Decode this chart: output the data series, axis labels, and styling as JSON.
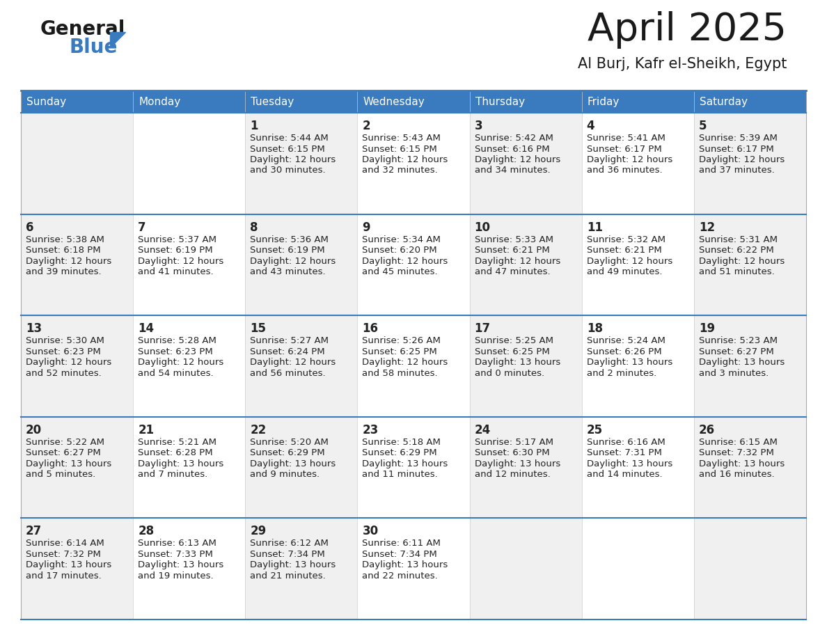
{
  "title": "April 2025",
  "subtitle": "Al Burj, Kafr el-Sheikh, Egypt",
  "header_color": "#3a7abf",
  "header_text_color": "#ffffff",
  "days_of_week": [
    "Sunday",
    "Monday",
    "Tuesday",
    "Wednesday",
    "Thursday",
    "Friday",
    "Saturday"
  ],
  "cell_bg_even": "#f0f0f0",
  "cell_bg_odd": "#ffffff",
  "divider_color": "#3a7abf",
  "text_color": "#222222",
  "title_color": "#1a1a1a",
  "logo_general_color": "#1a1a1a",
  "logo_blue_color": "#3a7abf",
  "logo_triangle_color": "#3a7abf",
  "calendar_data": [
    [
      {
        "day": null,
        "sunrise": null,
        "sunset": null,
        "daylight_line1": null,
        "daylight_line2": null
      },
      {
        "day": null,
        "sunrise": null,
        "sunset": null,
        "daylight_line1": null,
        "daylight_line2": null
      },
      {
        "day": "1",
        "sunrise": "Sunrise: 5:44 AM",
        "sunset": "Sunset: 6:15 PM",
        "daylight_line1": "Daylight: 12 hours",
        "daylight_line2": "and 30 minutes."
      },
      {
        "day": "2",
        "sunrise": "Sunrise: 5:43 AM",
        "sunset": "Sunset: 6:15 PM",
        "daylight_line1": "Daylight: 12 hours",
        "daylight_line2": "and 32 minutes."
      },
      {
        "day": "3",
        "sunrise": "Sunrise: 5:42 AM",
        "sunset": "Sunset: 6:16 PM",
        "daylight_line1": "Daylight: 12 hours",
        "daylight_line2": "and 34 minutes."
      },
      {
        "day": "4",
        "sunrise": "Sunrise: 5:41 AM",
        "sunset": "Sunset: 6:17 PM",
        "daylight_line1": "Daylight: 12 hours",
        "daylight_line2": "and 36 minutes."
      },
      {
        "day": "5",
        "sunrise": "Sunrise: 5:39 AM",
        "sunset": "Sunset: 6:17 PM",
        "daylight_line1": "Daylight: 12 hours",
        "daylight_line2": "and 37 minutes."
      }
    ],
    [
      {
        "day": "6",
        "sunrise": "Sunrise: 5:38 AM",
        "sunset": "Sunset: 6:18 PM",
        "daylight_line1": "Daylight: 12 hours",
        "daylight_line2": "and 39 minutes."
      },
      {
        "day": "7",
        "sunrise": "Sunrise: 5:37 AM",
        "sunset": "Sunset: 6:19 PM",
        "daylight_line1": "Daylight: 12 hours",
        "daylight_line2": "and 41 minutes."
      },
      {
        "day": "8",
        "sunrise": "Sunrise: 5:36 AM",
        "sunset": "Sunset: 6:19 PM",
        "daylight_line1": "Daylight: 12 hours",
        "daylight_line2": "and 43 minutes."
      },
      {
        "day": "9",
        "sunrise": "Sunrise: 5:34 AM",
        "sunset": "Sunset: 6:20 PM",
        "daylight_line1": "Daylight: 12 hours",
        "daylight_line2": "and 45 minutes."
      },
      {
        "day": "10",
        "sunrise": "Sunrise: 5:33 AM",
        "sunset": "Sunset: 6:21 PM",
        "daylight_line1": "Daylight: 12 hours",
        "daylight_line2": "and 47 minutes."
      },
      {
        "day": "11",
        "sunrise": "Sunrise: 5:32 AM",
        "sunset": "Sunset: 6:21 PM",
        "daylight_line1": "Daylight: 12 hours",
        "daylight_line2": "and 49 minutes."
      },
      {
        "day": "12",
        "sunrise": "Sunrise: 5:31 AM",
        "sunset": "Sunset: 6:22 PM",
        "daylight_line1": "Daylight: 12 hours",
        "daylight_line2": "and 51 minutes."
      }
    ],
    [
      {
        "day": "13",
        "sunrise": "Sunrise: 5:30 AM",
        "sunset": "Sunset: 6:23 PM",
        "daylight_line1": "Daylight: 12 hours",
        "daylight_line2": "and 52 minutes."
      },
      {
        "day": "14",
        "sunrise": "Sunrise: 5:28 AM",
        "sunset": "Sunset: 6:23 PM",
        "daylight_line1": "Daylight: 12 hours",
        "daylight_line2": "and 54 minutes."
      },
      {
        "day": "15",
        "sunrise": "Sunrise: 5:27 AM",
        "sunset": "Sunset: 6:24 PM",
        "daylight_line1": "Daylight: 12 hours",
        "daylight_line2": "and 56 minutes."
      },
      {
        "day": "16",
        "sunrise": "Sunrise: 5:26 AM",
        "sunset": "Sunset: 6:25 PM",
        "daylight_line1": "Daylight: 12 hours",
        "daylight_line2": "and 58 minutes."
      },
      {
        "day": "17",
        "sunrise": "Sunrise: 5:25 AM",
        "sunset": "Sunset: 6:25 PM",
        "daylight_line1": "Daylight: 13 hours",
        "daylight_line2": "and 0 minutes."
      },
      {
        "day": "18",
        "sunrise": "Sunrise: 5:24 AM",
        "sunset": "Sunset: 6:26 PM",
        "daylight_line1": "Daylight: 13 hours",
        "daylight_line2": "and 2 minutes."
      },
      {
        "day": "19",
        "sunrise": "Sunrise: 5:23 AM",
        "sunset": "Sunset: 6:27 PM",
        "daylight_line1": "Daylight: 13 hours",
        "daylight_line2": "and 3 minutes."
      }
    ],
    [
      {
        "day": "20",
        "sunrise": "Sunrise: 5:22 AM",
        "sunset": "Sunset: 6:27 PM",
        "daylight_line1": "Daylight: 13 hours",
        "daylight_line2": "and 5 minutes."
      },
      {
        "day": "21",
        "sunrise": "Sunrise: 5:21 AM",
        "sunset": "Sunset: 6:28 PM",
        "daylight_line1": "Daylight: 13 hours",
        "daylight_line2": "and 7 minutes."
      },
      {
        "day": "22",
        "sunrise": "Sunrise: 5:20 AM",
        "sunset": "Sunset: 6:29 PM",
        "daylight_line1": "Daylight: 13 hours",
        "daylight_line2": "and 9 minutes."
      },
      {
        "day": "23",
        "sunrise": "Sunrise: 5:18 AM",
        "sunset": "Sunset: 6:29 PM",
        "daylight_line1": "Daylight: 13 hours",
        "daylight_line2": "and 11 minutes."
      },
      {
        "day": "24",
        "sunrise": "Sunrise: 5:17 AM",
        "sunset": "Sunset: 6:30 PM",
        "daylight_line1": "Daylight: 13 hours",
        "daylight_line2": "and 12 minutes."
      },
      {
        "day": "25",
        "sunrise": "Sunrise: 6:16 AM",
        "sunset": "Sunset: 7:31 PM",
        "daylight_line1": "Daylight: 13 hours",
        "daylight_line2": "and 14 minutes."
      },
      {
        "day": "26",
        "sunrise": "Sunrise: 6:15 AM",
        "sunset": "Sunset: 7:32 PM",
        "daylight_line1": "Daylight: 13 hours",
        "daylight_line2": "and 16 minutes."
      }
    ],
    [
      {
        "day": "27",
        "sunrise": "Sunrise: 6:14 AM",
        "sunset": "Sunset: 7:32 PM",
        "daylight_line1": "Daylight: 13 hours",
        "daylight_line2": "and 17 minutes."
      },
      {
        "day": "28",
        "sunrise": "Sunrise: 6:13 AM",
        "sunset": "Sunset: 7:33 PM",
        "daylight_line1": "Daylight: 13 hours",
        "daylight_line2": "and 19 minutes."
      },
      {
        "day": "29",
        "sunrise": "Sunrise: 6:12 AM",
        "sunset": "Sunset: 7:34 PM",
        "daylight_line1": "Daylight: 13 hours",
        "daylight_line2": "and 21 minutes."
      },
      {
        "day": "30",
        "sunrise": "Sunrise: 6:11 AM",
        "sunset": "Sunset: 7:34 PM",
        "daylight_line1": "Daylight: 13 hours",
        "daylight_line2": "and 22 minutes."
      },
      {
        "day": null,
        "sunrise": null,
        "sunset": null,
        "daylight_line1": null,
        "daylight_line2": null
      },
      {
        "day": null,
        "sunrise": null,
        "sunset": null,
        "daylight_line1": null,
        "daylight_line2": null
      },
      {
        "day": null,
        "sunrise": null,
        "sunset": null,
        "daylight_line1": null,
        "daylight_line2": null
      }
    ]
  ]
}
